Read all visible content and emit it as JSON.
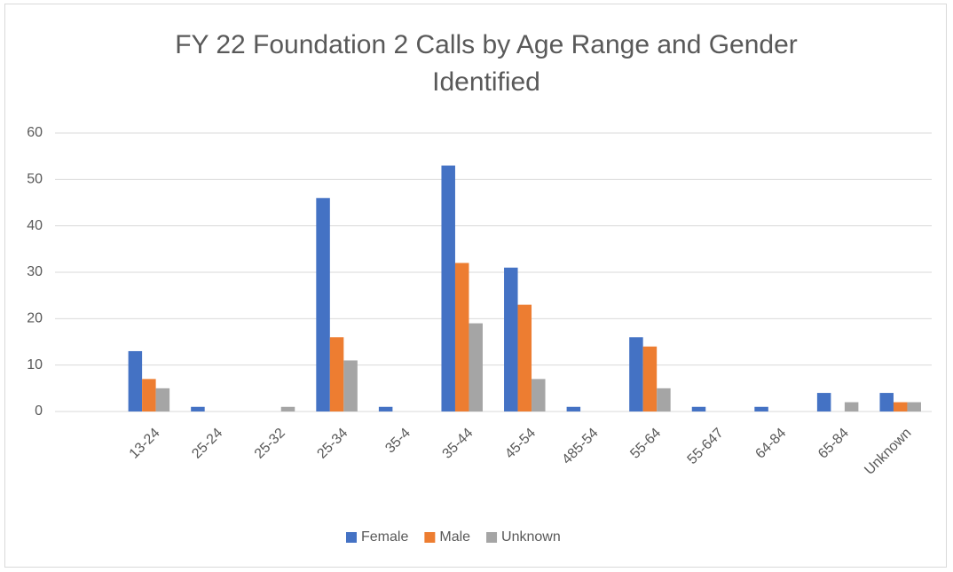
{
  "chart_data": {
    "type": "bar",
    "title": "FY 22 Foundation 2 Calls  by Age Range and Gender Identified",
    "categories": [
      null,
      "13-24",
      "25-24",
      "25-32",
      "25-34",
      "35-4",
      "35-44",
      "45-54",
      "485-54",
      "55-64",
      "55-647",
      "64-84",
      "65-84",
      "Unknown"
    ],
    "series": [
      {
        "name": "Female",
        "color": "#4472c4",
        "values": [
          null,
          13,
          1,
          0,
          46,
          1,
          53,
          31,
          1,
          16,
          1,
          1,
          4,
          4
        ]
      },
      {
        "name": "Male",
        "color": "#ed7d31",
        "values": [
          null,
          7,
          0,
          0,
          16,
          0,
          32,
          23,
          0,
          14,
          0,
          0,
          0,
          2
        ]
      },
      {
        "name": "Unknown",
        "color": "#a5a5a5",
        "values": [
          null,
          5,
          0,
          1,
          11,
          0,
          19,
          7,
          0,
          5,
          0,
          0,
          2,
          2
        ]
      }
    ],
    "ylim": [
      0,
      60
    ],
    "yticks": [
      0,
      10,
      20,
      30,
      40,
      50,
      60
    ],
    "grid": true,
    "legend": "bottom"
  }
}
